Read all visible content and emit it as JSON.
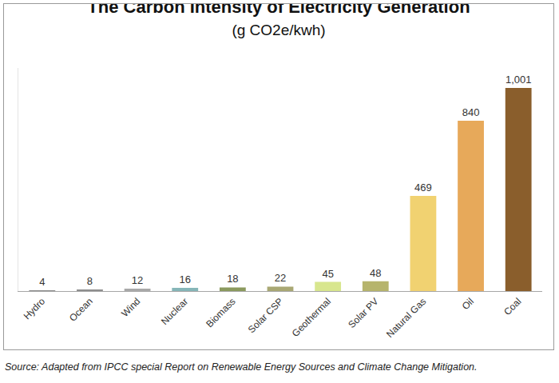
{
  "chart_data": {
    "type": "bar",
    "title": "The Carbon Intensity of Electricity Generation",
    "subtitle": "(g CO2e/kwh)",
    "categories": [
      "Hydro",
      "Ocean",
      "Wind",
      "Nuclear",
      "Biomass",
      "Solar CSP",
      "Geothermal",
      "Solar PV",
      "Natural Gas",
      "Oil",
      "Coal"
    ],
    "values": [
      4,
      8,
      12,
      16,
      18,
      22,
      45,
      48,
      469,
      840,
      1001
    ],
    "value_labels": [
      "4",
      "8",
      "12",
      "16",
      "18",
      "22",
      "45",
      "48",
      "469",
      "840",
      "1,001"
    ],
    "colors": [
      "#8c8c8c",
      "#8e8e8e",
      "#a9a9a9",
      "#86b6b8",
      "#8b9a5e",
      "#a9a874",
      "#d8e68e",
      "#b6b46c",
      "#f1d271",
      "#e7a95a",
      "#8a5e2c"
    ],
    "ylim": [
      0,
      1100
    ],
    "grid": false,
    "data_labels": true,
    "tick_labels": "x",
    "annotations": [
      "Source: Adapted from IPCC special Report on Renewable Energy Sources and Climate Change Mitigation."
    ]
  }
}
